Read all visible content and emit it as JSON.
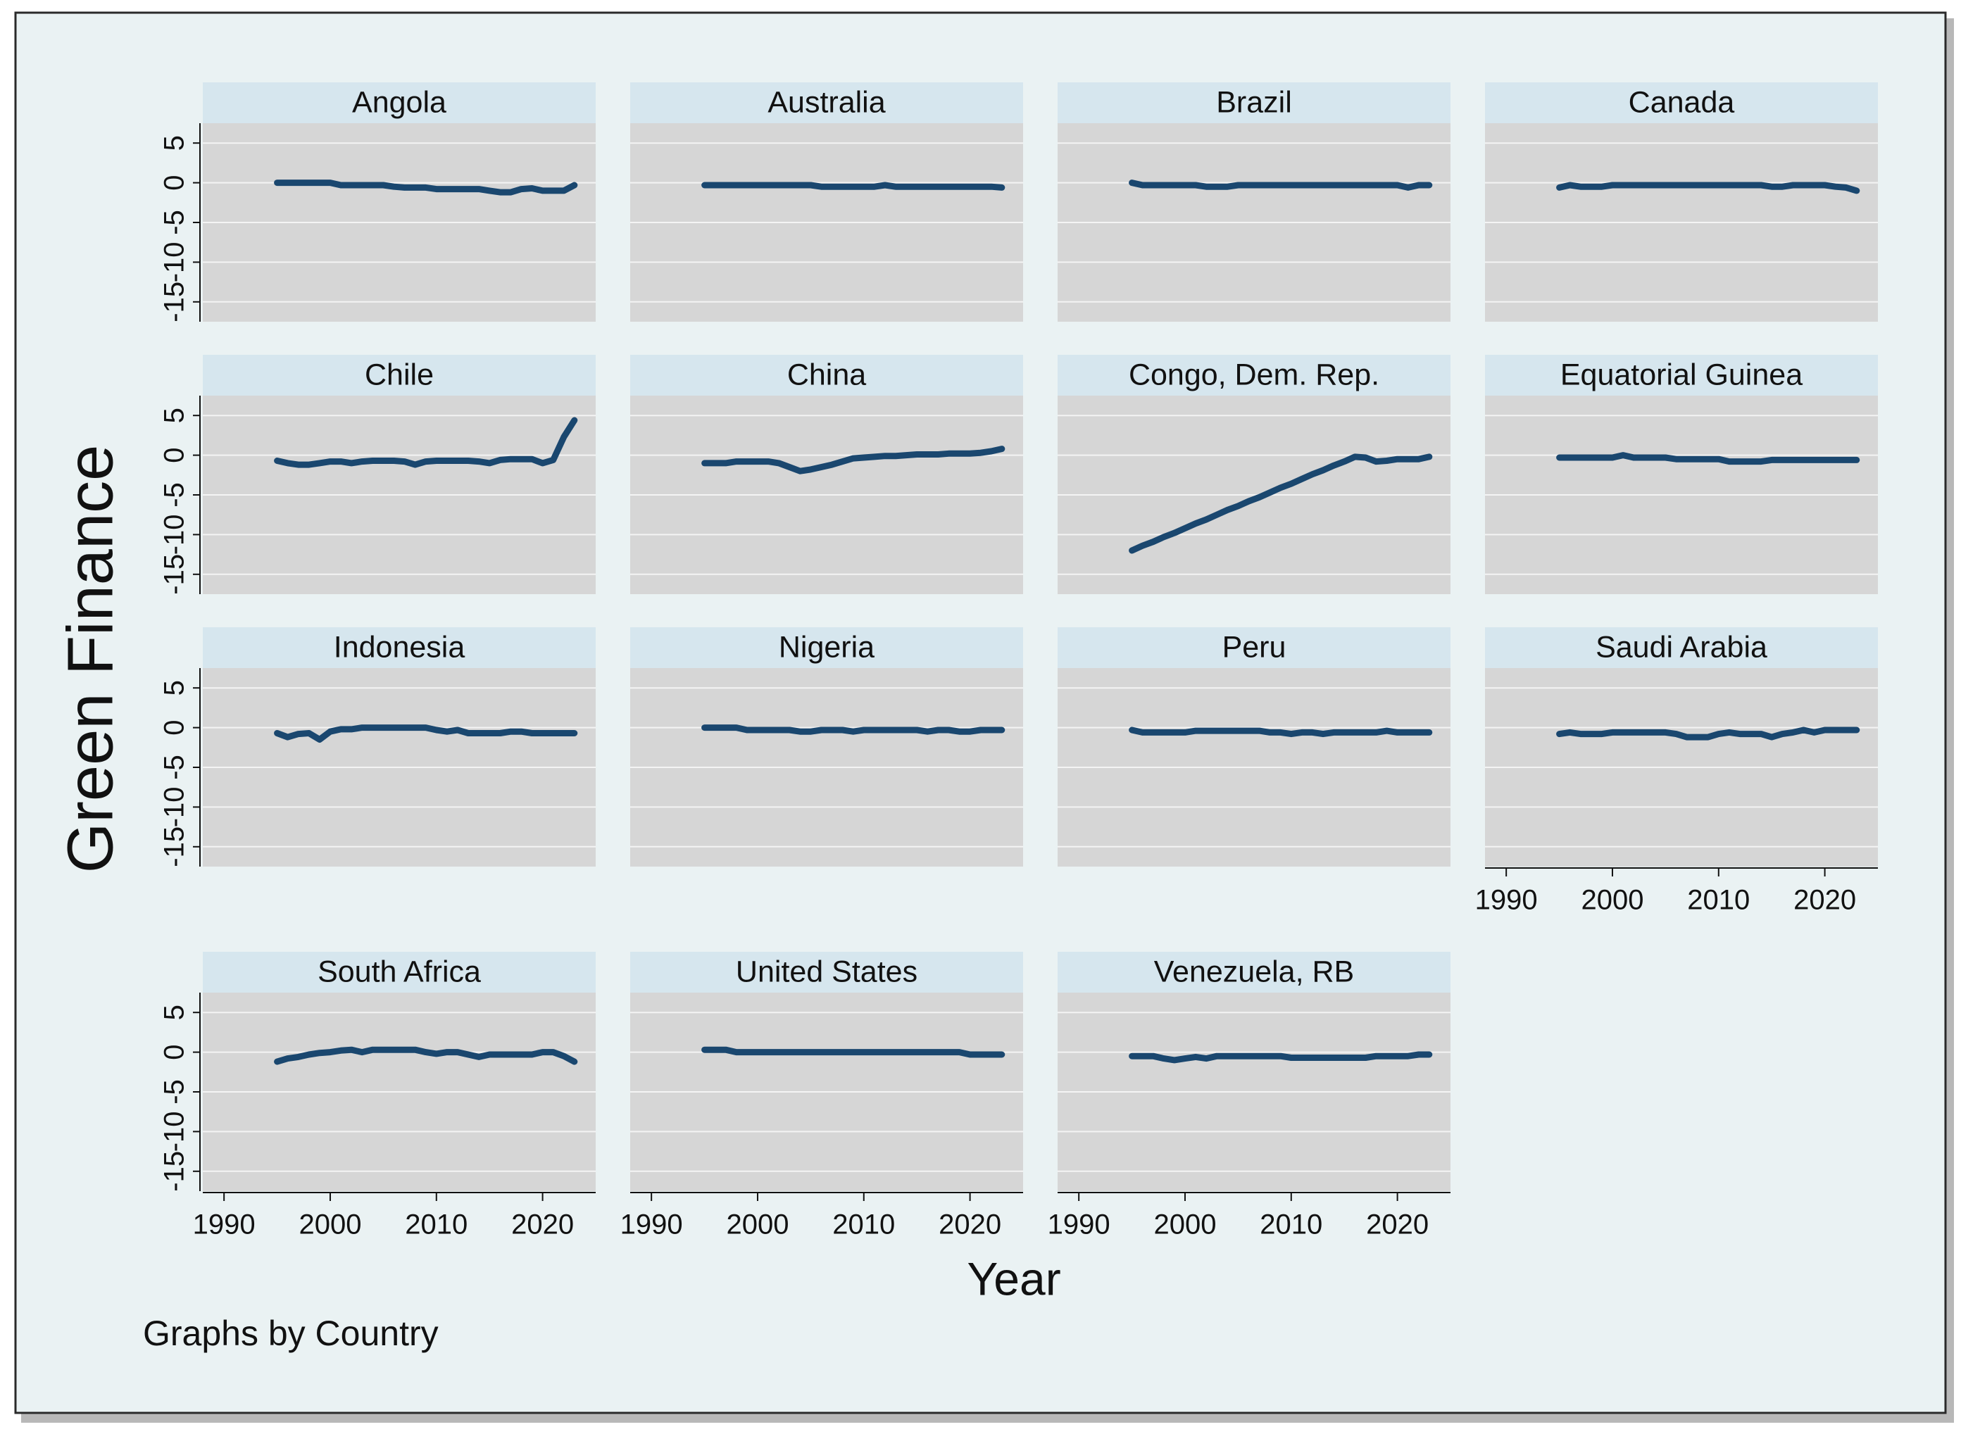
{
  "chart_data": {
    "type": "line",
    "y_label": "Green Finance",
    "x_label": "Year",
    "note": "Graphs by Country",
    "color": "#1a476f",
    "grid": true,
    "xlim": [
      1988,
      2025
    ],
    "xticks": [
      1990,
      2000,
      2010,
      2020
    ],
    "ylim": [
      -17.5,
      7.5
    ],
    "yticks": [
      -15,
      -10,
      -5,
      0,
      5
    ],
    "x": [
      1995,
      1996,
      1997,
      1998,
      1999,
      2000,
      2001,
      2002,
      2003,
      2004,
      2005,
      2006,
      2007,
      2008,
      2009,
      2010,
      2011,
      2012,
      2013,
      2014,
      2015,
      2016,
      2017,
      2018,
      2019,
      2020,
      2021,
      2022,
      2023
    ],
    "panels": [
      {
        "title": "Angola",
        "values": [
          0,
          0,
          0,
          0,
          0,
          0,
          -0.3,
          -0.3,
          -0.3,
          -0.3,
          -0.3,
          -0.5,
          -0.6,
          -0.6,
          -0.6,
          -0.8,
          -0.8,
          -0.8,
          -0.8,
          -0.8,
          -1,
          -1.2,
          -1.2,
          -0.8,
          -0.7,
          -1,
          -1,
          -1,
          -0.3
        ]
      },
      {
        "title": "Australia",
        "values": [
          -0.3,
          -0.3,
          -0.3,
          -0.3,
          -0.3,
          -0.3,
          -0.3,
          -0.3,
          -0.3,
          -0.3,
          -0.3,
          -0.5,
          -0.5,
          -0.5,
          -0.5,
          -0.5,
          -0.5,
          -0.3,
          -0.5,
          -0.5,
          -0.5,
          -0.5,
          -0.5,
          -0.5,
          -0.5,
          -0.5,
          -0.5,
          -0.5,
          -0.6
        ]
      },
      {
        "title": "Brazil",
        "values": [
          0,
          -0.3,
          -0.3,
          -0.3,
          -0.3,
          -0.3,
          -0.3,
          -0.5,
          -0.5,
          -0.5,
          -0.3,
          -0.3,
          -0.3,
          -0.3,
          -0.3,
          -0.3,
          -0.3,
          -0.3,
          -0.3,
          -0.3,
          -0.3,
          -0.3,
          -0.3,
          -0.3,
          -0.3,
          -0.3,
          -0.6,
          -0.3,
          -0.3
        ]
      },
      {
        "title": "Canada",
        "values": [
          -0.6,
          -0.3,
          -0.5,
          -0.5,
          -0.5,
          -0.3,
          -0.3,
          -0.3,
          -0.3,
          -0.3,
          -0.3,
          -0.3,
          -0.3,
          -0.3,
          -0.3,
          -0.3,
          -0.3,
          -0.3,
          -0.3,
          -0.3,
          -0.5,
          -0.5,
          -0.3,
          -0.3,
          -0.3,
          -0.3,
          -0.5,
          -0.6,
          -1
        ]
      },
      {
        "title": "Chile",
        "values": [
          -0.7,
          -1,
          -1.2,
          -1.2,
          -1,
          -0.8,
          -0.8,
          -1,
          -0.8,
          -0.7,
          -0.7,
          -0.7,
          -0.8,
          -1.2,
          -0.8,
          -0.7,
          -0.7,
          -0.7,
          -0.7,
          -0.8,
          -1,
          -0.6,
          -0.5,
          -0.5,
          -0.5,
          -1,
          -0.6,
          2.3,
          4.4
        ]
      },
      {
        "title": "China",
        "values": [
          -1,
          -1,
          -1,
          -0.8,
          -0.8,
          -0.8,
          -0.8,
          -1,
          -1.5,
          -2,
          -1.8,
          -1.5,
          -1.2,
          -0.8,
          -0.4,
          -0.3,
          -0.2,
          -0.1,
          -0.1,
          0,
          0.1,
          0.1,
          0.1,
          0.2,
          0.2,
          0.2,
          0.3,
          0.5,
          0.8
        ]
      },
      {
        "title": "Congo, Dem. Rep.",
        "values": [
          -12,
          -11.4,
          -10.9,
          -10.3,
          -9.8,
          -9.2,
          -8.6,
          -8.1,
          -7.5,
          -6.9,
          -6.4,
          -5.8,
          -5.3,
          -4.7,
          -4.1,
          -3.6,
          -3,
          -2.4,
          -1.9,
          -1.3,
          -0.8,
          -0.2,
          -0.3,
          -0.8,
          -0.7,
          -0.5,
          -0.5,
          -0.5,
          -0.2
        ]
      },
      {
        "title": "Equatorial Guinea",
        "values": [
          -0.3,
          -0.3,
          -0.3,
          -0.3,
          -0.3,
          -0.3,
          0,
          -0.3,
          -0.3,
          -0.3,
          -0.3,
          -0.5,
          -0.5,
          -0.5,
          -0.5,
          -0.5,
          -0.8,
          -0.8,
          -0.8,
          -0.8,
          -0.6,
          -0.6,
          -0.6,
          -0.6,
          -0.6,
          -0.6,
          -0.6,
          -0.6,
          -0.6
        ]
      },
      {
        "title": "Indonesia",
        "values": [
          -0.7,
          -1.2,
          -0.8,
          -0.7,
          -1.5,
          -0.5,
          -0.2,
          -0.2,
          0,
          0,
          0,
          0,
          0,
          0,
          0,
          -0.3,
          -0.5,
          -0.3,
          -0.7,
          -0.7,
          -0.7,
          -0.7,
          -0.5,
          -0.5,
          -0.7,
          -0.7,
          -0.7,
          -0.7,
          -0.7
        ]
      },
      {
        "title": "Nigeria",
        "values": [
          0,
          0,
          0,
          0,
          -0.3,
          -0.3,
          -0.3,
          -0.3,
          -0.3,
          -0.5,
          -0.5,
          -0.3,
          -0.3,
          -0.3,
          -0.5,
          -0.3,
          -0.3,
          -0.3,
          -0.3,
          -0.3,
          -0.3,
          -0.5,
          -0.3,
          -0.3,
          -0.5,
          -0.5,
          -0.3,
          -0.3,
          -0.3
        ]
      },
      {
        "title": "Peru",
        "values": [
          -0.3,
          -0.6,
          -0.6,
          -0.6,
          -0.6,
          -0.6,
          -0.4,
          -0.4,
          -0.4,
          -0.4,
          -0.4,
          -0.4,
          -0.4,
          -0.6,
          -0.6,
          -0.8,
          -0.6,
          -0.6,
          -0.8,
          -0.6,
          -0.6,
          -0.6,
          -0.6,
          -0.6,
          -0.4,
          -0.6,
          -0.6,
          -0.6,
          -0.6
        ]
      },
      {
        "title": "Saudi Arabia",
        "values": [
          -0.8,
          -0.6,
          -0.8,
          -0.8,
          -0.8,
          -0.6,
          -0.6,
          -0.6,
          -0.6,
          -0.6,
          -0.6,
          -0.8,
          -1.2,
          -1.2,
          -1.2,
          -0.8,
          -0.6,
          -0.8,
          -0.8,
          -0.8,
          -1.2,
          -0.8,
          -0.6,
          -0.3,
          -0.6,
          -0.3,
          -0.3,
          -0.3,
          -0.3
        ]
      },
      {
        "title": "South Africa",
        "values": [
          -1.2,
          -0.8,
          -0.6,
          -0.3,
          -0.1,
          0,
          0.2,
          0.3,
          0,
          0.3,
          0.3,
          0.3,
          0.3,
          0.3,
          0,
          -0.2,
          0,
          0,
          -0.3,
          -0.6,
          -0.3,
          -0.3,
          -0.3,
          -0.3,
          -0.3,
          0,
          0,
          -0.5,
          -1.2
        ]
      },
      {
        "title": "United States",
        "values": [
          0.3,
          0.3,
          0.3,
          0,
          0,
          0,
          0,
          0,
          0,
          0,
          0,
          0,
          0,
          0,
          0,
          0,
          0,
          0,
          0,
          0,
          0,
          0,
          0,
          0,
          0,
          -0.3,
          -0.3,
          -0.3,
          -0.3
        ]
      },
      {
        "title": "Venezuela, RB",
        "values": [
          -0.5,
          -0.5,
          -0.5,
          -0.8,
          -1,
          -0.8,
          -0.6,
          -0.8,
          -0.5,
          -0.5,
          -0.5,
          -0.5,
          -0.5,
          -0.5,
          -0.5,
          -0.7,
          -0.7,
          -0.7,
          -0.7,
          -0.7,
          -0.7,
          -0.7,
          -0.7,
          -0.5,
          -0.5,
          -0.5,
          -0.5,
          -0.3,
          -0.3
        ]
      }
    ]
  }
}
